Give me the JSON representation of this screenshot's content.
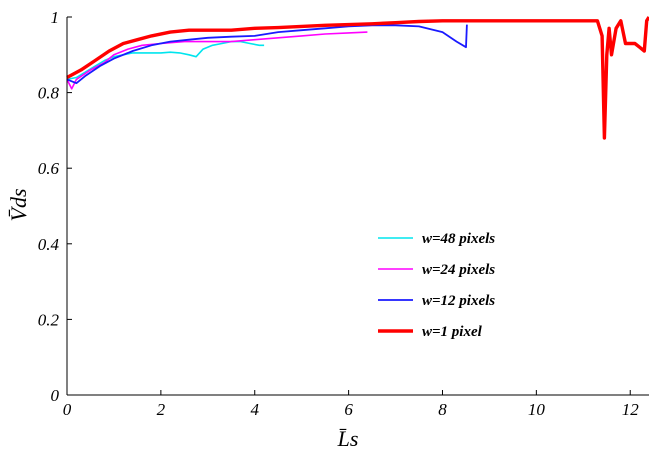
{
  "chart_data": {
    "type": "line",
    "title": "",
    "xlabel": "L̄s",
    "ylabel": "V̄ds",
    "xlim": [
      0,
      12.4
    ],
    "ylim": [
      0,
      1
    ],
    "xticks": [
      0,
      2,
      4,
      6,
      8,
      10,
      12
    ],
    "yticks": [
      0,
      0.2,
      0.4,
      0.6,
      0.8,
      1
    ],
    "xtick_labels": [
      "0",
      "2",
      "4",
      "6",
      "8",
      "10",
      "12"
    ],
    "ytick_labels": [
      "0",
      "0.2",
      "0.4",
      "0.6",
      "0.8",
      "1"
    ],
    "grid": false,
    "legend_position": "center-right",
    "series": [
      {
        "name": "w=48 pixels",
        "color": "#00e5ee",
        "x": [
          0,
          0.2,
          0.4,
          0.6,
          0.8,
          1.0,
          1.2,
          1.4,
          1.6,
          1.8,
          2.0,
          2.2,
          2.4,
          2.6,
          2.75,
          2.9,
          3.1,
          3.3,
          3.5,
          3.7,
          3.9,
          4.1,
          4.2
        ],
        "y": [
          0.835,
          0.84,
          0.855,
          0.87,
          0.885,
          0.895,
          0.9,
          0.905,
          0.905,
          0.905,
          0.905,
          0.907,
          0.905,
          0.9,
          0.895,
          0.915,
          0.925,
          0.93,
          0.935,
          0.935,
          0.93,
          0.925,
          0.925
        ]
      },
      {
        "name": "w=24 pixels",
        "color": "#ff00ff",
        "x": [
          0,
          0.1,
          0.2,
          0.5,
          0.8,
          1.0,
          1.3,
          1.6,
          2.0,
          2.5,
          3.0,
          3.5,
          4.0,
          4.5,
          5.0,
          5.5,
          6.0,
          6.4
        ],
        "y": [
          0.835,
          0.81,
          0.835,
          0.86,
          0.88,
          0.9,
          0.915,
          0.925,
          0.93,
          0.935,
          0.935,
          0.935,
          0.94,
          0.945,
          0.95,
          0.955,
          0.958,
          0.96
        ]
      },
      {
        "name": "w=12 pixels",
        "color": "#1a1aff",
        "x": [
          0,
          0.2,
          0.4,
          0.7,
          1.0,
          1.4,
          1.8,
          2.2,
          2.6,
          3.0,
          3.5,
          4.0,
          4.5,
          5.0,
          5.5,
          6.0,
          6.5,
          7.0,
          7.5,
          8.0,
          8.3,
          8.5,
          8.52
        ],
        "y": [
          0.835,
          0.825,
          0.845,
          0.87,
          0.89,
          0.91,
          0.925,
          0.935,
          0.94,
          0.945,
          0.948,
          0.95,
          0.96,
          0.965,
          0.97,
          0.975,
          0.978,
          0.978,
          0.975,
          0.96,
          0.935,
          0.92,
          0.98
        ]
      },
      {
        "name": "w=1 pixel",
        "color": "#ff0000",
        "x": [
          0,
          0.3,
          0.6,
          0.9,
          1.2,
          1.5,
          1.8,
          2.2,
          2.6,
          3.0,
          3.5,
          4.0,
          4.5,
          5.0,
          5.5,
          6.0,
          6.5,
          7.0,
          7.5,
          8.0,
          8.5,
          9.0,
          9.5,
          10.0,
          10.5,
          11.0,
          11.3,
          11.4,
          11.45,
          11.5,
          11.55,
          11.6,
          11.7,
          11.8,
          11.9,
          12.0,
          12.1,
          12.2,
          12.3,
          12.35,
          12.4
        ],
        "y": [
          0.84,
          0.86,
          0.885,
          0.91,
          0.93,
          0.94,
          0.95,
          0.96,
          0.965,
          0.965,
          0.965,
          0.97,
          0.972,
          0.975,
          0.978,
          0.98,
          0.982,
          0.985,
          0.988,
          0.99,
          0.99,
          0.99,
          0.99,
          0.99,
          0.99,
          0.99,
          0.99,
          0.95,
          0.68,
          0.9,
          0.97,
          0.9,
          0.97,
          0.99,
          0.93,
          0.93,
          0.93,
          0.92,
          0.91,
          0.99,
          1.0
        ]
      }
    ]
  }
}
